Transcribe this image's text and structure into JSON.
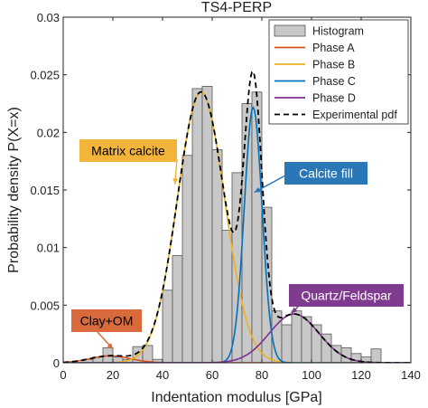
{
  "chart_data": {
    "type": "bar",
    "title": "TS4-PERP",
    "xlabel": "Indentation modulus [GPa]",
    "ylabel": "Probability density P(X=x)",
    "xlim": [
      0,
      140
    ],
    "ylim": [
      0,
      0.03
    ],
    "xticks": [
      0,
      20,
      40,
      60,
      80,
      100,
      120,
      140
    ],
    "xtick_labels": [
      "0",
      "20",
      "40",
      "60",
      "80",
      "100",
      "120",
      "140"
    ],
    "yticks": [
      0,
      0.005,
      0.01,
      0.015,
      0.02,
      0.025,
      0.03
    ],
    "ytick_labels": [
      "0",
      "0.005",
      "0.01",
      "0.015",
      "0.02",
      "0.025",
      "0.03"
    ],
    "grid": false,
    "legend_position": "top-right",
    "histogram": {
      "name": "Histogram",
      "color": "#c8c8c8",
      "bin_width": 4,
      "bins_start": [
        8,
        12,
        16,
        20,
        24,
        28,
        32,
        36,
        40,
        44,
        48,
        52,
        56,
        60,
        64,
        68,
        72,
        76,
        80,
        84,
        88,
        92,
        96,
        100,
        104,
        108,
        112,
        116,
        120,
        124
      ],
      "density": [
        0.0003,
        0.0005,
        0.0013,
        0.0005,
        0.0003,
        0.0014,
        0.0015,
        0.0003,
        0.0063,
        0.0093,
        0.018,
        0.0238,
        0.024,
        0.0185,
        0.0115,
        0.0165,
        0.0225,
        0.0235,
        0.0135,
        0.0045,
        0.0033,
        0.0045,
        0.004,
        0.0033,
        0.0025,
        0.0015,
        0.0013,
        0.0008,
        0.0005,
        0.0012
      ]
    },
    "series": [
      {
        "name": "Phase A",
        "color": "#d95319",
        "kind": "gaussian",
        "mean": 19,
        "sd": 8,
        "weight": 0.012
      },
      {
        "name": "Phase B",
        "color": "#edb120",
        "kind": "gaussian",
        "mean": 55.5,
        "sd": 9.5,
        "weight": 0.56
      },
      {
        "name": "Phase C",
        "color": "#0072bd",
        "kind": "gaussian",
        "mean": 76.5,
        "sd": 3.6,
        "weight": 0.2
      },
      {
        "name": "Phase D",
        "color": "#7e2f8e",
        "kind": "gaussian",
        "mean": 93,
        "sd": 10,
        "weight": 0.106
      },
      {
        "name": "Experimental pdf",
        "color": "#000000",
        "kind": "sum",
        "dashed": true
      }
    ],
    "annotations": [
      {
        "text": "Matrix calcite",
        "box_color": "#f3b43a",
        "text_color": "#000000",
        "arrow_to": [
          45,
          0.0155
        ]
      },
      {
        "text": "Calcite fill",
        "box_color": "#2a77b8",
        "text_color": "#ffffff",
        "arrow_to": [
          77,
          0.0148
        ]
      },
      {
        "text": "Clay+OM",
        "box_color": "#d86a3c",
        "text_color": "#000000",
        "arrow_to": [
          20,
          0.0012
        ]
      },
      {
        "text": "Quartz/Feldspar",
        "box_color": "#7f3b8f",
        "text_color": "#ffffff",
        "arrow_to": [
          92,
          0.0043
        ]
      }
    ]
  }
}
